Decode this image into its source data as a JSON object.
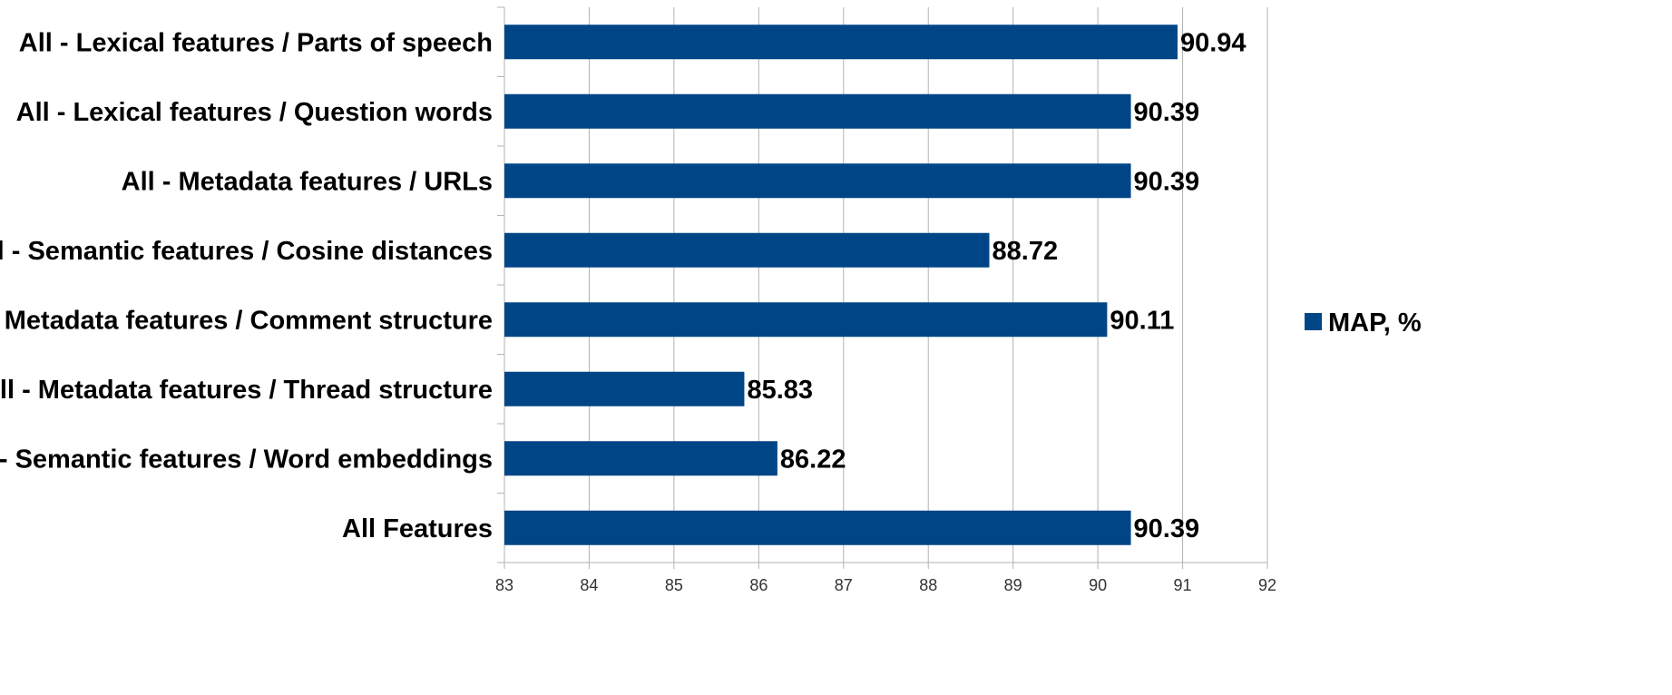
{
  "chart_data": {
    "type": "bar",
    "orientation": "horizontal",
    "categories": [
      "All - Lexical features / Parts of speech",
      "All - Lexical features / Question words",
      "All - Metadata features / URLs",
      "All - Semantic features / Cosine distances",
      "All - Metadata features / Comment structure",
      "All - Metadata features / Thread structure",
      "All - Semantic features / Word embeddings",
      "All Features"
    ],
    "series": [
      {
        "name": "MAP, %",
        "values": [
          90.94,
          90.39,
          90.39,
          88.72,
          90.11,
          85.83,
          86.22,
          90.39
        ],
        "value_labels": [
          "90.94",
          "90.39",
          "90.39",
          "88.72",
          "90.11",
          "85.83",
          "86.22",
          "90.39"
        ],
        "color": "#004586"
      }
    ],
    "xlim": [
      83,
      92
    ],
    "xticks": [
      83,
      84,
      85,
      86,
      87,
      88,
      89,
      90,
      91,
      92
    ],
    "xtick_labels": [
      "83",
      "84",
      "85",
      "86",
      "87",
      "88",
      "89",
      "90",
      "91",
      "92"
    ],
    "grid": "vertical",
    "legend_position": "right",
    "title": "",
    "xlabel": "",
    "ylabel": ""
  }
}
